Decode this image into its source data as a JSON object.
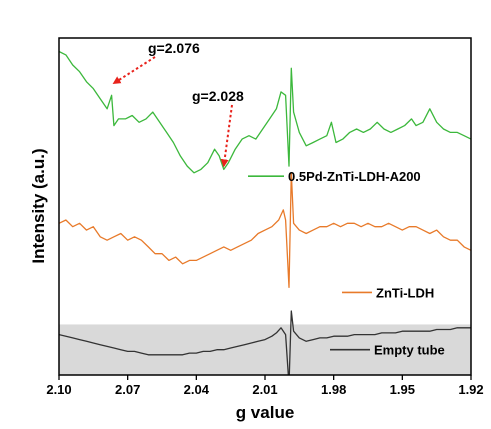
{
  "chart_data": {
    "type": "line",
    "title": "",
    "xlabel": "g value",
    "ylabel": "Intensity (a.u.)",
    "xlim": [
      2.1,
      1.92
    ],
    "x_reversed": true,
    "ylim": [
      0,
      10
    ],
    "grid": false,
    "legend_placement": "inline-right",
    "x_ticks": [
      "2.10",
      "2.07",
      "2.04",
      "2.01",
      "1.98",
      "1.95",
      "1.92"
    ],
    "x_tick_values": [
      2.1,
      2.07,
      2.04,
      2.01,
      1.98,
      1.95,
      1.92
    ],
    "shaded_region": {
      "series": "Empty tube",
      "y_range": [
        0,
        1.5
      ],
      "color": "#d9d9d9"
    },
    "annotations": [
      {
        "text": "g=2.076",
        "x": 2.076,
        "y": 8.6,
        "color": "#e8221b"
      },
      {
        "text": "g=2.028",
        "x": 2.028,
        "y": 6.15,
        "color": "#e8221b"
      }
    ],
    "series": [
      {
        "name": "0.5Pd-ZnTi-LDH-A200",
        "color": "#3cb83c",
        "points": [
          [
            2.1,
            9.6
          ],
          [
            2.097,
            9.5
          ],
          [
            2.094,
            9.2
          ],
          [
            2.091,
            9.0
          ],
          [
            2.088,
            8.7
          ],
          [
            2.085,
            8.5
          ],
          [
            2.082,
            8.2
          ],
          [
            2.079,
            7.9
          ],
          [
            2.077,
            8.3
          ],
          [
            2.076,
            7.4
          ],
          [
            2.074,
            7.6
          ],
          [
            2.071,
            7.6
          ],
          [
            2.068,
            7.7
          ],
          [
            2.065,
            7.5
          ],
          [
            2.062,
            7.6
          ],
          [
            2.059,
            7.8
          ],
          [
            2.056,
            7.5
          ],
          [
            2.053,
            7.2
          ],
          [
            2.05,
            6.9
          ],
          [
            2.047,
            6.5
          ],
          [
            2.044,
            6.2
          ],
          [
            2.041,
            6.0
          ],
          [
            2.038,
            6.1
          ],
          [
            2.035,
            6.3
          ],
          [
            2.032,
            6.7
          ],
          [
            2.03,
            6.5
          ],
          [
            2.028,
            6.1
          ],
          [
            2.026,
            6.3
          ],
          [
            2.023,
            6.7
          ],
          [
            2.02,
            7.0
          ],
          [
            2.017,
            7.1
          ],
          [
            2.014,
            7.0
          ],
          [
            2.011,
            7.3
          ],
          [
            2.008,
            7.6
          ],
          [
            2.005,
            7.9
          ],
          [
            2.003,
            8.4
          ],
          [
            2.001,
            8.3
          ],
          [
            1.9995,
            6.2
          ],
          [
            1.9985,
            9.1
          ],
          [
            1.9975,
            7.8
          ],
          [
            1.995,
            7.2
          ],
          [
            1.992,
            6.8
          ],
          [
            1.989,
            6.9
          ],
          [
            1.986,
            7.0
          ],
          [
            1.983,
            7.1
          ],
          [
            1.981,
            7.5
          ],
          [
            1.979,
            6.9
          ],
          [
            1.976,
            7.0
          ],
          [
            1.973,
            7.2
          ],
          [
            1.97,
            7.3
          ],
          [
            1.967,
            7.2
          ],
          [
            1.964,
            7.3
          ],
          [
            1.961,
            7.5
          ],
          [
            1.958,
            7.3
          ],
          [
            1.955,
            7.2
          ],
          [
            1.952,
            7.3
          ],
          [
            1.949,
            7.4
          ],
          [
            1.946,
            7.6
          ],
          [
            1.944,
            7.4
          ],
          [
            1.941,
            7.5
          ],
          [
            1.938,
            7.9
          ],
          [
            1.935,
            7.5
          ],
          [
            1.932,
            7.3
          ],
          [
            1.929,
            7.2
          ],
          [
            1.926,
            7.2
          ],
          [
            1.923,
            7.1
          ],
          [
            1.92,
            7.0
          ]
        ]
      },
      {
        "name": "ZnTi-LDH",
        "color": "#e87a2a",
        "points": [
          [
            2.1,
            4.5
          ],
          [
            2.097,
            4.6
          ],
          [
            2.094,
            4.4
          ],
          [
            2.091,
            4.5
          ],
          [
            2.088,
            4.3
          ],
          [
            2.085,
            4.4
          ],
          [
            2.082,
            4.1
          ],
          [
            2.079,
            4.0
          ],
          [
            2.076,
            4.1
          ],
          [
            2.073,
            4.2
          ],
          [
            2.07,
            4.0
          ],
          [
            2.067,
            4.1
          ],
          [
            2.064,
            4.0
          ],
          [
            2.061,
            3.8
          ],
          [
            2.058,
            3.6
          ],
          [
            2.055,
            3.6
          ],
          [
            2.052,
            3.4
          ],
          [
            2.049,
            3.5
          ],
          [
            2.046,
            3.3
          ],
          [
            2.043,
            3.4
          ],
          [
            2.04,
            3.4
          ],
          [
            2.037,
            3.5
          ],
          [
            2.034,
            3.6
          ],
          [
            2.031,
            3.7
          ],
          [
            2.028,
            3.8
          ],
          [
            2.025,
            3.7
          ],
          [
            2.022,
            3.8
          ],
          [
            2.019,
            3.9
          ],
          [
            2.016,
            4.0
          ],
          [
            2.013,
            4.2
          ],
          [
            2.01,
            4.3
          ],
          [
            2.007,
            4.4
          ],
          [
            2.004,
            4.6
          ],
          [
            2.002,
            4.9
          ],
          [
            2.001,
            4.6
          ],
          [
            1.9995,
            2.6
          ],
          [
            1.9985,
            6.0
          ],
          [
            1.9975,
            4.5
          ],
          [
            1.995,
            4.3
          ],
          [
            1.992,
            4.2
          ],
          [
            1.989,
            4.3
          ],
          [
            1.986,
            4.4
          ],
          [
            1.983,
            4.4
          ],
          [
            1.98,
            4.5
          ],
          [
            1.977,
            4.4
          ],
          [
            1.974,
            4.5
          ],
          [
            1.971,
            4.5
          ],
          [
            1.968,
            4.4
          ],
          [
            1.965,
            4.5
          ],
          [
            1.962,
            4.4
          ],
          [
            1.959,
            4.4
          ],
          [
            1.956,
            4.5
          ],
          [
            1.953,
            4.4
          ],
          [
            1.95,
            4.3
          ],
          [
            1.947,
            4.4
          ],
          [
            1.944,
            4.4
          ],
          [
            1.941,
            4.3
          ],
          [
            1.938,
            4.2
          ],
          [
            1.935,
            4.3
          ],
          [
            1.932,
            4.1
          ],
          [
            1.929,
            4.0
          ],
          [
            1.926,
            4.0
          ],
          [
            1.923,
            3.8
          ],
          [
            1.92,
            3.7
          ]
        ]
      },
      {
        "name": "Empty tube",
        "color": "#333333",
        "points": [
          [
            2.1,
            1.2
          ],
          [
            2.097,
            1.15
          ],
          [
            2.094,
            1.1
          ],
          [
            2.091,
            1.05
          ],
          [
            2.088,
            1.0
          ],
          [
            2.085,
            0.95
          ],
          [
            2.082,
            0.9
          ],
          [
            2.079,
            0.85
          ],
          [
            2.076,
            0.8
          ],
          [
            2.073,
            0.75
          ],
          [
            2.07,
            0.7
          ],
          [
            2.067,
            0.7
          ],
          [
            2.064,
            0.65
          ],
          [
            2.061,
            0.6
          ],
          [
            2.058,
            0.6
          ],
          [
            2.055,
            0.6
          ],
          [
            2.052,
            0.6
          ],
          [
            2.049,
            0.6
          ],
          [
            2.046,
            0.6
          ],
          [
            2.043,
            0.65
          ],
          [
            2.04,
            0.65
          ],
          [
            2.037,
            0.7
          ],
          [
            2.034,
            0.7
          ],
          [
            2.031,
            0.75
          ],
          [
            2.028,
            0.75
          ],
          [
            2.025,
            0.8
          ],
          [
            2.022,
            0.85
          ],
          [
            2.019,
            0.9
          ],
          [
            2.016,
            0.95
          ],
          [
            2.013,
            1.0
          ],
          [
            2.01,
            1.05
          ],
          [
            2.007,
            1.15
          ],
          [
            2.005,
            1.25
          ],
          [
            2.003,
            1.4
          ],
          [
            2.001,
            1.2
          ],
          [
            1.9995,
            -0.3
          ],
          [
            1.9985,
            1.9
          ],
          [
            1.9975,
            1.3
          ],
          [
            1.995,
            1.1
          ],
          [
            1.992,
            1.0
          ],
          [
            1.989,
            1.05
          ],
          [
            1.986,
            1.1
          ],
          [
            1.983,
            1.1
          ],
          [
            1.98,
            1.15
          ],
          [
            1.977,
            1.15
          ],
          [
            1.974,
            1.15
          ],
          [
            1.971,
            1.2
          ],
          [
            1.968,
            1.2
          ],
          [
            1.965,
            1.2
          ],
          [
            1.962,
            1.2
          ],
          [
            1.959,
            1.25
          ],
          [
            1.956,
            1.25
          ],
          [
            1.953,
            1.25
          ],
          [
            1.95,
            1.3
          ],
          [
            1.947,
            1.3
          ],
          [
            1.944,
            1.3
          ],
          [
            1.941,
            1.3
          ],
          [
            1.938,
            1.3
          ],
          [
            1.935,
            1.35
          ],
          [
            1.932,
            1.35
          ],
          [
            1.929,
            1.35
          ],
          [
            1.926,
            1.4
          ],
          [
            1.923,
            1.4
          ],
          [
            1.92,
            1.4
          ]
        ]
      }
    ]
  }
}
